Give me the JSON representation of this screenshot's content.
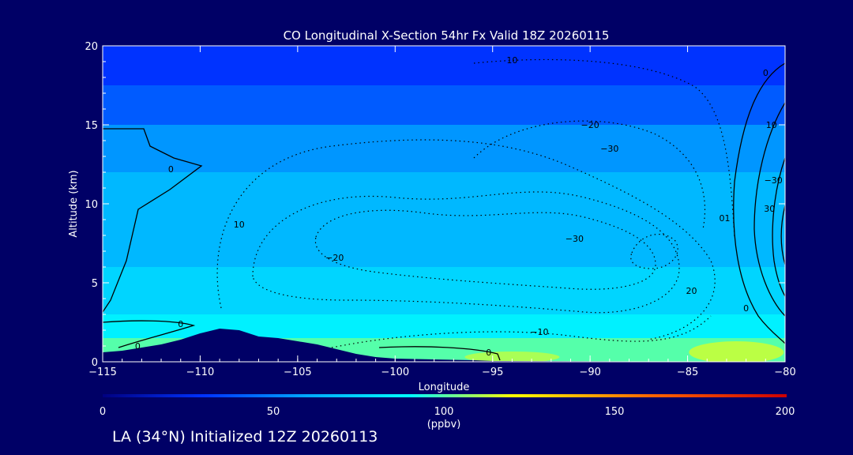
{
  "chart_data": {
    "type": "heatmap",
    "title": "CO Longitudinal X-Section 54hr  Fx Valid 18Z 20260115",
    "xlabel": "Longitude",
    "ylabel": "Altitude (km)",
    "xlim": [
      -115,
      -80
    ],
    "ylim": [
      0,
      20
    ],
    "x_ticks": [
      -115,
      -110,
      -105,
      -100,
      -95,
      -90,
      -85,
      -80
    ],
    "x_tick_labels": [
      "−115",
      "−110",
      "−105",
      "−100",
      "−95",
      "−90",
      "−85",
      "−80"
    ],
    "y_ticks": [
      0,
      5,
      10,
      15,
      20
    ],
    "y_tick_labels": [
      "0",
      "5",
      "10",
      "15",
      "20"
    ],
    "colorbar": {
      "label": "(ppbv)",
      "range": [
        0,
        200
      ],
      "ticks": [
        0,
        50,
        100,
        150,
        200
      ],
      "tick_labels": [
        "0",
        "50",
        "100",
        "150",
        "200"
      ],
      "colors": [
        "#000080",
        "#0033ff",
        "#00aaff",
        "#00ffff",
        "#ffff00",
        "#ff6600",
        "#cc0000"
      ]
    },
    "shaded_levels_ppbv": [
      {
        "min_alt_km": 17.5,
        "value": 30
      },
      {
        "min_alt_km": 15,
        "value": 40
      },
      {
        "min_alt_km": 12,
        "value": 55
      },
      {
        "min_alt_km": 6,
        "value": 65
      },
      {
        "min_alt_km": 3,
        "value": 75
      },
      {
        "min_alt_km": 1.5,
        "value": 85
      },
      {
        "min_alt_km": 0,
        "value": 100
      }
    ],
    "terrain_km": [
      [
        -115,
        0.6
      ],
      [
        -114,
        0.7
      ],
      [
        -113,
        0.9
      ],
      [
        -112,
        1.1
      ],
      [
        -111,
        1.4
      ],
      [
        -110,
        1.8
      ],
      [
        -109,
        2.1
      ],
      [
        -108,
        2.0
      ],
      [
        -107,
        1.6
      ],
      [
        -106,
        1.5
      ],
      [
        -105,
        1.3
      ],
      [
        -104,
        1.1
      ],
      [
        -103,
        0.8
      ],
      [
        -102,
        0.5
      ],
      [
        -101,
        0.3
      ],
      [
        -100,
        0.2
      ],
      [
        -98,
        0.15
      ],
      [
        -96,
        0.1
      ],
      [
        -95,
        0.05
      ],
      [
        -80,
        0.0
      ]
    ],
    "contour_labels": [
      {
        "text": "10",
        "lon": -94,
        "alt": 18.9
      },
      {
        "text": "0",
        "lon": -81,
        "alt": 18.1
      },
      {
        "text": "−20",
        "lon": -90,
        "alt": 14.8
      },
      {
        "text": "10",
        "lon": -80.7,
        "alt": 14.8
      },
      {
        "text": "−30",
        "lon": -89,
        "alt": 13.3
      },
      {
        "text": "0",
        "lon": -111.5,
        "alt": 12.0
      },
      {
        "text": "−30",
        "lon": -80.6,
        "alt": 11.3
      },
      {
        "text": "10",
        "lon": -108,
        "alt": 8.5
      },
      {
        "text": "01",
        "lon": -83.1,
        "alt": 8.9
      },
      {
        "text": "−30",
        "lon": -90.8,
        "alt": 7.6
      },
      {
        "text": "30",
        "lon": -80.8,
        "alt": 9.5
      },
      {
        "text": "−20",
        "lon": -103.1,
        "alt": 6.4
      },
      {
        "text": "20",
        "lon": -84.8,
        "alt": 4.3
      },
      {
        "text": "0",
        "lon": -82,
        "alt": 3.2
      },
      {
        "text": "0",
        "lon": -111,
        "alt": 2.2
      },
      {
        "text": "−10",
        "lon": -92.6,
        "alt": 1.7
      },
      {
        "text": "0",
        "lon": -113.2,
        "alt": 0.8
      },
      {
        "text": "0",
        "lon": -95.2,
        "alt": 0.4
      }
    ]
  },
  "footer": "LA (34°N) Initialized 12Z 20260113"
}
